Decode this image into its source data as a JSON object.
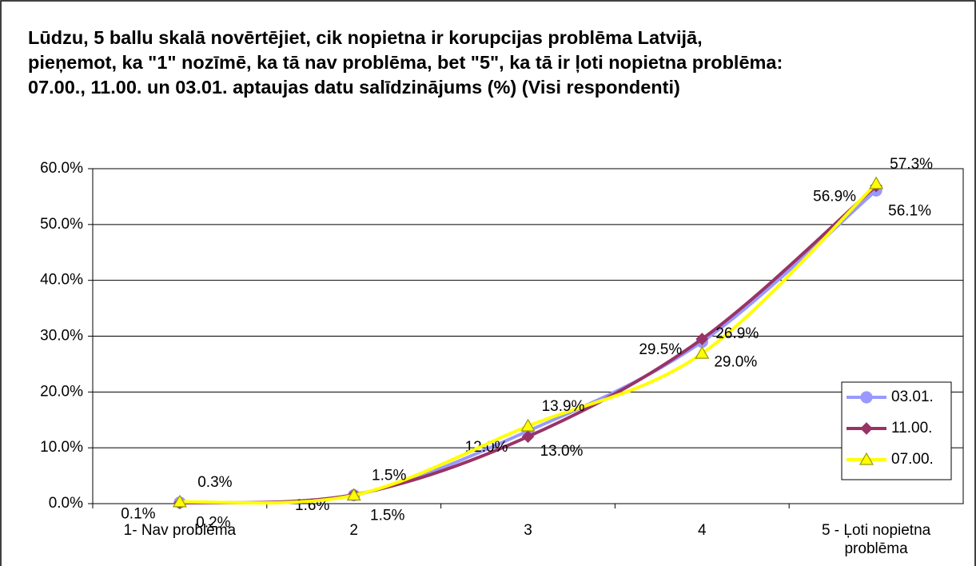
{
  "chart_data": {
    "type": "line",
    "smooth": true,
    "title": "Lūdzu, 5 ballu skalā novērtējiet, cik nopietna ir korupcijas problēma Latvijā, pieņemot, ka \"1\" nozīmē, ka tā nav problēma, bet \"5\", ka tā ir ļoti nopietna problēma:  07.00., 11.00. un 03.01. aptaujas datu salīdzinājums (%) (Visi respondenti)",
    "categories": [
      "1- Nav problēma",
      "2",
      "3",
      "4",
      "5 - Ļoti nopietna problēma"
    ],
    "series": [
      {
        "name": "03.01.",
        "color": "#9999ff",
        "marker": "circle",
        "values": [
          0.2,
          1.5,
          13.0,
          29.0,
          56.1
        ],
        "value_labels": [
          "0.2%",
          "1.5%",
          "13.0%",
          "29.0%",
          "56.1%"
        ]
      },
      {
        "name": "11.00.",
        "color": "#993366",
        "marker": "diamond",
        "values": [
          0.1,
          1.6,
          12.0,
          29.5,
          56.9
        ],
        "value_labels": [
          "0.1%",
          "1.6%",
          "12.0%",
          "29.5%",
          "56.9%"
        ]
      },
      {
        "name": "07.00.",
        "color": "#ffff00",
        "marker": "triangle",
        "values": [
          0.3,
          1.5,
          13.9,
          26.9,
          57.3
        ],
        "value_labels": [
          "0.3%",
          "1.5%",
          "13.9%",
          "26.9%",
          "57.3%"
        ]
      }
    ],
    "ylim": [
      0,
      60
    ],
    "yticks": [
      {
        "value": 0,
        "label": "0.0%"
      },
      {
        "value": 10,
        "label": "10.0%"
      },
      {
        "value": 20,
        "label": "20.0%"
      },
      {
        "value": 30,
        "label": "30.0%"
      },
      {
        "value": 40,
        "label": "40.0%"
      },
      {
        "value": 50,
        "label": "50.0%"
      },
      {
        "value": 60,
        "label": "60.0%"
      }
    ],
    "grid": true,
    "legend": "right"
  }
}
